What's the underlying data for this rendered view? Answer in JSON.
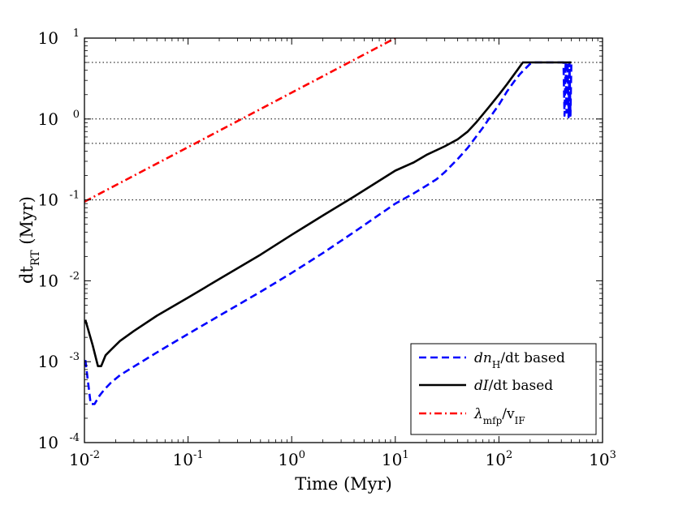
{
  "chart_data": {
    "type": "line",
    "xscale": "log",
    "yscale": "log",
    "xlim": [
      0.01,
      1000
    ],
    "ylim": [
      0.0001,
      10
    ],
    "xlabel": "Time (Myr)",
    "ylabel": {
      "base": "dt",
      "sub": "RT",
      "unit": " (Myr)"
    },
    "x_ticks": [
      {
        "value": 0.01,
        "base": "10",
        "exp": "-2"
      },
      {
        "value": 0.1,
        "base": "10",
        "exp": "-1"
      },
      {
        "value": 1,
        "base": "10",
        "exp": "0"
      },
      {
        "value": 10,
        "base": "10",
        "exp": "1"
      },
      {
        "value": 100,
        "base": "10",
        "exp": "2"
      },
      {
        "value": 1000,
        "base": "10",
        "exp": "3"
      }
    ],
    "y_ticks": [
      {
        "value": 0.0001,
        "base": "10",
        "exp": "-4"
      },
      {
        "value": 0.001,
        "base": "10",
        "exp": "-3"
      },
      {
        "value": 0.01,
        "base": "10",
        "exp": "-2"
      },
      {
        "value": 0.1,
        "base": "10",
        "exp": "-1"
      },
      {
        "value": 1,
        "base": "10",
        "exp": "0"
      },
      {
        "value": 10,
        "base": "10",
        "exp": "1"
      }
    ],
    "reference_lines": [
      0.1,
      0.5,
      1.0,
      5.0
    ],
    "legend_position": "lower-right",
    "series": [
      {
        "name": "dn_H/dt based",
        "legend_label": {
          "a": "dn",
          "sub": "H",
          "b": "/dt based"
        },
        "color": "#0000ff",
        "style": "dashed",
        "x": [
          0.0102,
          0.0115,
          0.0125,
          0.014,
          0.0155,
          0.018,
          0.022,
          0.03,
          0.05,
          0.1,
          0.2,
          0.5,
          1,
          2,
          4,
          10,
          15,
          20,
          25,
          30,
          40,
          50,
          60,
          70,
          80,
          100,
          120,
          140,
          160,
          180,
          200,
          220,
          420,
          430,
          440,
          450,
          460,
          470,
          480,
          490,
          500
        ],
        "y": [
          0.00105,
          0.0003,
          0.0003,
          0.00038,
          0.00045,
          0.00055,
          0.00068,
          0.00087,
          0.0013,
          0.0022,
          0.0037,
          0.0073,
          0.0125,
          0.022,
          0.04,
          0.09,
          0.12,
          0.15,
          0.18,
          0.22,
          0.32,
          0.44,
          0.6,
          0.78,
          1.0,
          1.5,
          2.2,
          2.9,
          3.6,
          4.2,
          4.8,
          5.0,
          5.0,
          1.1,
          5.0,
          1.2,
          5.0,
          1.05,
          5.0,
          1.1,
          5.0
        ]
      },
      {
        "name": "dI/dt based",
        "legend_label": {
          "a": "dI",
          "sub": "",
          "b": "/dt based"
        },
        "color": "#000000",
        "style": "solid",
        "x": [
          0.0102,
          0.012,
          0.0135,
          0.0145,
          0.016,
          0.018,
          0.022,
          0.03,
          0.05,
          0.1,
          0.2,
          0.5,
          1,
          2,
          4,
          10,
          15,
          20,
          30,
          40,
          50,
          60,
          80,
          100,
          120,
          150,
          170,
          200,
          300,
          400,
          500
        ],
        "y": [
          0.0033,
          0.0016,
          0.00088,
          0.00088,
          0.0012,
          0.0014,
          0.0018,
          0.0024,
          0.0037,
          0.0062,
          0.0105,
          0.021,
          0.037,
          0.064,
          0.11,
          0.23,
          0.29,
          0.36,
          0.46,
          0.56,
          0.7,
          0.9,
          1.4,
          2.0,
          2.7,
          4.0,
          5.0,
          5.0,
          5.0,
          5.0,
          5.0
        ]
      },
      {
        "name": "lambda_mfp/v_IF",
        "legend_label": {
          "a": "λ",
          "sub": "mfp",
          "b": "/v",
          "sub2": "IF"
        },
        "color": "#ff0000",
        "style": "dashdot",
        "x": [
          0.01,
          10
        ],
        "y": [
          0.095,
          10
        ]
      }
    ]
  }
}
